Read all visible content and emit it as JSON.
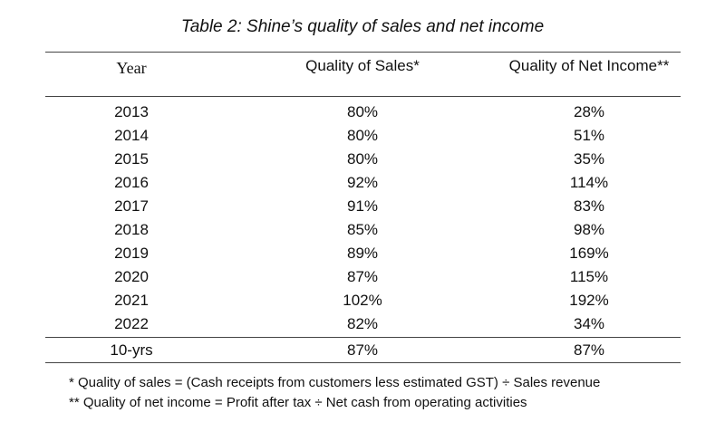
{
  "caption": "Table 2: Shine’s quality of sales and net income",
  "columns": [
    "Year",
    "Quality of Sales*",
    "Quality of Net Income**"
  ],
  "rows": [
    {
      "year": "2013",
      "sales": "80%",
      "net_income": "28%"
    },
    {
      "year": "2014",
      "sales": "80%",
      "net_income": "51%"
    },
    {
      "year": "2015",
      "sales": "80%",
      "net_income": "35%"
    },
    {
      "year": "2016",
      "sales": "92%",
      "net_income": "114%"
    },
    {
      "year": "2017",
      "sales": "91%",
      "net_income": "83%"
    },
    {
      "year": "2018",
      "sales": "85%",
      "net_income": "98%"
    },
    {
      "year": "2019",
      "sales": "89%",
      "net_income": "169%"
    },
    {
      "year": "2020",
      "sales": "87%",
      "net_income": "115%"
    },
    {
      "year": "2021",
      "sales": "102%",
      "net_income": "192%"
    },
    {
      "year": "2022",
      "sales": "82%",
      "net_income": "34%"
    }
  ],
  "summary": {
    "year": "10-yrs",
    "sales": "87%",
    "net_income": "87%"
  },
  "footnotes": [
    "* Quality of sales = (Cash receipts from customers less estimated GST) ÷ Sales revenue",
    "** Quality of net income = Profit after tax ÷ Net cash from operating activities"
  ]
}
